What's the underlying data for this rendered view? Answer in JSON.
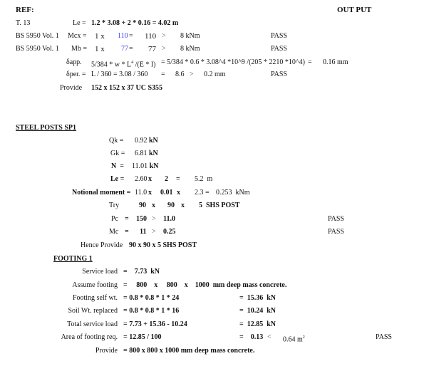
{
  "header": {
    "ref": "REF:",
    "output": "OUT PUT"
  },
  "beam": {
    "r1": {
      "ref": "T. 13",
      "label": "Le =",
      "expr": "1.2 * 3.08 + 2 * 0.16 = 4.02 m"
    },
    "r2": {
      "ref": "BS 5950 Vol. 1",
      "label": "Mcx =",
      "a": "1 x",
      "b": "110",
      "beq": "=",
      "c": "110",
      "gt": ">",
      "d": "8 kNm",
      "status": "PASS"
    },
    "r3": {
      "ref": "BS 5950 Vol. 1",
      "label": "Mb =",
      "a": "1 x",
      "b": "77",
      "beq": "=",
      "c": "77",
      "gt": ">",
      "d": "8 kNm",
      "status": "PASS"
    },
    "r4": {
      "label": "δapp.",
      "formula": "5/384 * w * L",
      "sup": "4",
      "formula2": " /(E * I)",
      "expr": "= 5/384 * 0.6 * 3.08^4 *10^9 /(205 * 2210 *10^4)",
      "eq": "=",
      "result": "0.16 mm"
    },
    "r5": {
      "label": "δper. =",
      "formula": "L / 360 = 3.08 / 360",
      "eq": "=",
      "a": "8.6",
      "gt": ">",
      "b": "0.2 mm",
      "status": "PASS"
    },
    "r6": {
      "label": "Provide",
      "value": "152 x 152 x 37 UC S355"
    }
  },
  "posts": {
    "title": "STEEL POSTS SP1",
    "qk": {
      "label": "Qk =",
      "value": "0.92",
      "unit": "kN"
    },
    "gk": {
      "label": "Gk =",
      "value": "6.81",
      "unit": "kN"
    },
    "n": {
      "label": "N  =",
      "value": "11.01",
      "unit": "kN"
    },
    "le": {
      "label": "Le =",
      "a": "2.60",
      "x": "x",
      "b": "2",
      "eq": "=",
      "c": "5.2  m"
    },
    "nm": {
      "label": "Notional moment =",
      "a": "11.0",
      "x1": "x",
      "b": "0.01",
      "x2": "x",
      "c": "2.3 =",
      "d": "0.253  kNm"
    },
    "try": {
      "label": "Try",
      "a": "90",
      "x1": "x",
      "b": "90",
      "x2": "x",
      "c": "5  SHS POST"
    },
    "pc": {
      "label": "Pc",
      "eq": "=",
      "a": "150",
      "gt": ">",
      "b": "11.0",
      "status": "PASS"
    },
    "mc": {
      "label": "Mc",
      "eq": "=",
      "a": "11",
      "gt": ">",
      "b": "0.25",
      "status": "PASS"
    },
    "provide": {
      "label": "Hence Provide",
      "value": "90 x 90 x 5 SHS POST"
    }
  },
  "footing": {
    "title": "FOOTING 1",
    "rows": [
      {
        "label": "Service load",
        "expr": "=    7.73  kN"
      },
      {
        "label": "Assume footing",
        "expr": "=     800    x     800    x    1000  mm deep mass concrete."
      },
      {
        "label": "Footing self wt.",
        "expr": "= 0.8 * 0.8 * 1 * 24",
        "result": "=  15.36  kN"
      },
      {
        "label": "Soil Wt. replaced",
        "expr": "= 0.8 * 0.8 * 1 * 16",
        "result": "=  10.24  kN"
      },
      {
        "label": "Total service load",
        "expr": "= 7.73 + 15.36 - 10.24",
        "result": "=  12.85  kN"
      },
      {
        "label": "Area of footing req.",
        "expr": "= 12.85 / 100",
        "result": "=    0.13",
        "lt": "<",
        "area": "0.64 m",
        "sup": "2",
        "status": "PASS"
      },
      {
        "label": "Provide",
        "expr": "= 800 x 800 x 1000 mm deep mass concrete."
      }
    ]
  }
}
